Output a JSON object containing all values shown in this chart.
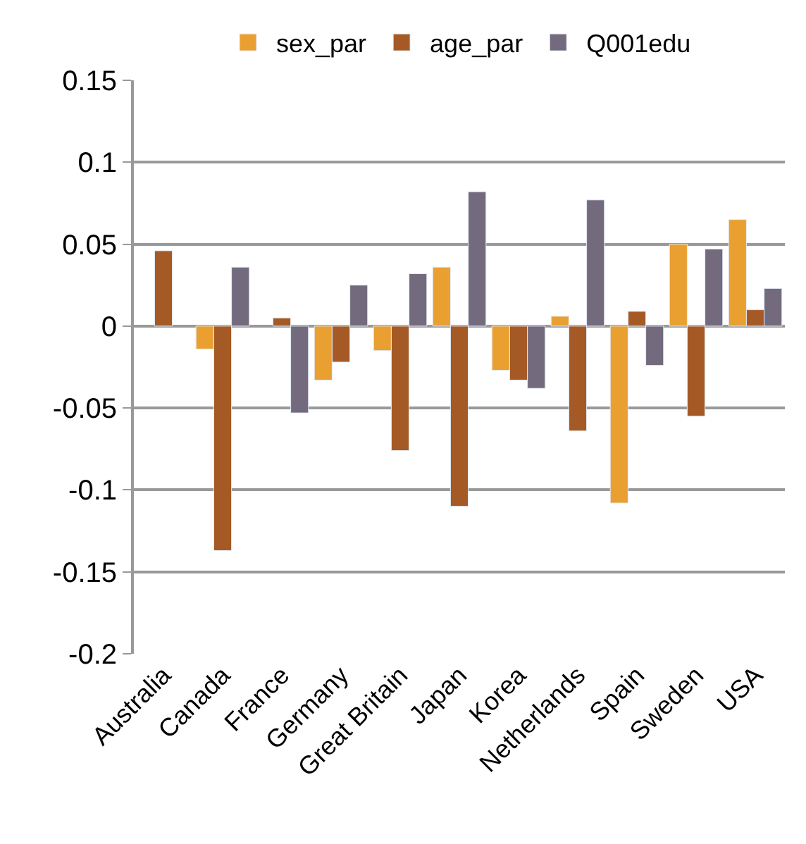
{
  "chart_data": {
    "type": "bar",
    "categories": [
      "Australia",
      "Canada",
      "France",
      "Germany",
      "Great Britain",
      "Japan",
      "Korea",
      "Netherlands",
      "Spain",
      "Sweden",
      "USA"
    ],
    "series": [
      {
        "name": "sex_par",
        "color": "#e9a030",
        "values": [
          null,
          -0.014,
          null,
          -0.033,
          -0.015,
          0.036,
          -0.027,
          0.006,
          -0.108,
          0.05,
          0.065
        ]
      },
      {
        "name": "age_par",
        "color": "#a55a26",
        "values": [
          0.046,
          -0.137,
          0.005,
          -0.022,
          -0.076,
          -0.11,
          -0.033,
          -0.064,
          0.009,
          -0.055,
          0.01
        ]
      },
      {
        "name": "Q001edu",
        "color": "#736a7d",
        "values": [
          null,
          0.036,
          -0.053,
          0.025,
          0.032,
          0.082,
          -0.038,
          0.077,
          -0.024,
          0.047,
          0.023
        ]
      }
    ],
    "ylim": [
      -0.2,
      0.15
    ],
    "yticks": [
      -0.2,
      -0.15,
      -0.1,
      -0.05,
      0,
      0.05,
      0.1,
      0.15
    ],
    "grid": "y",
    "legend": "top"
  }
}
